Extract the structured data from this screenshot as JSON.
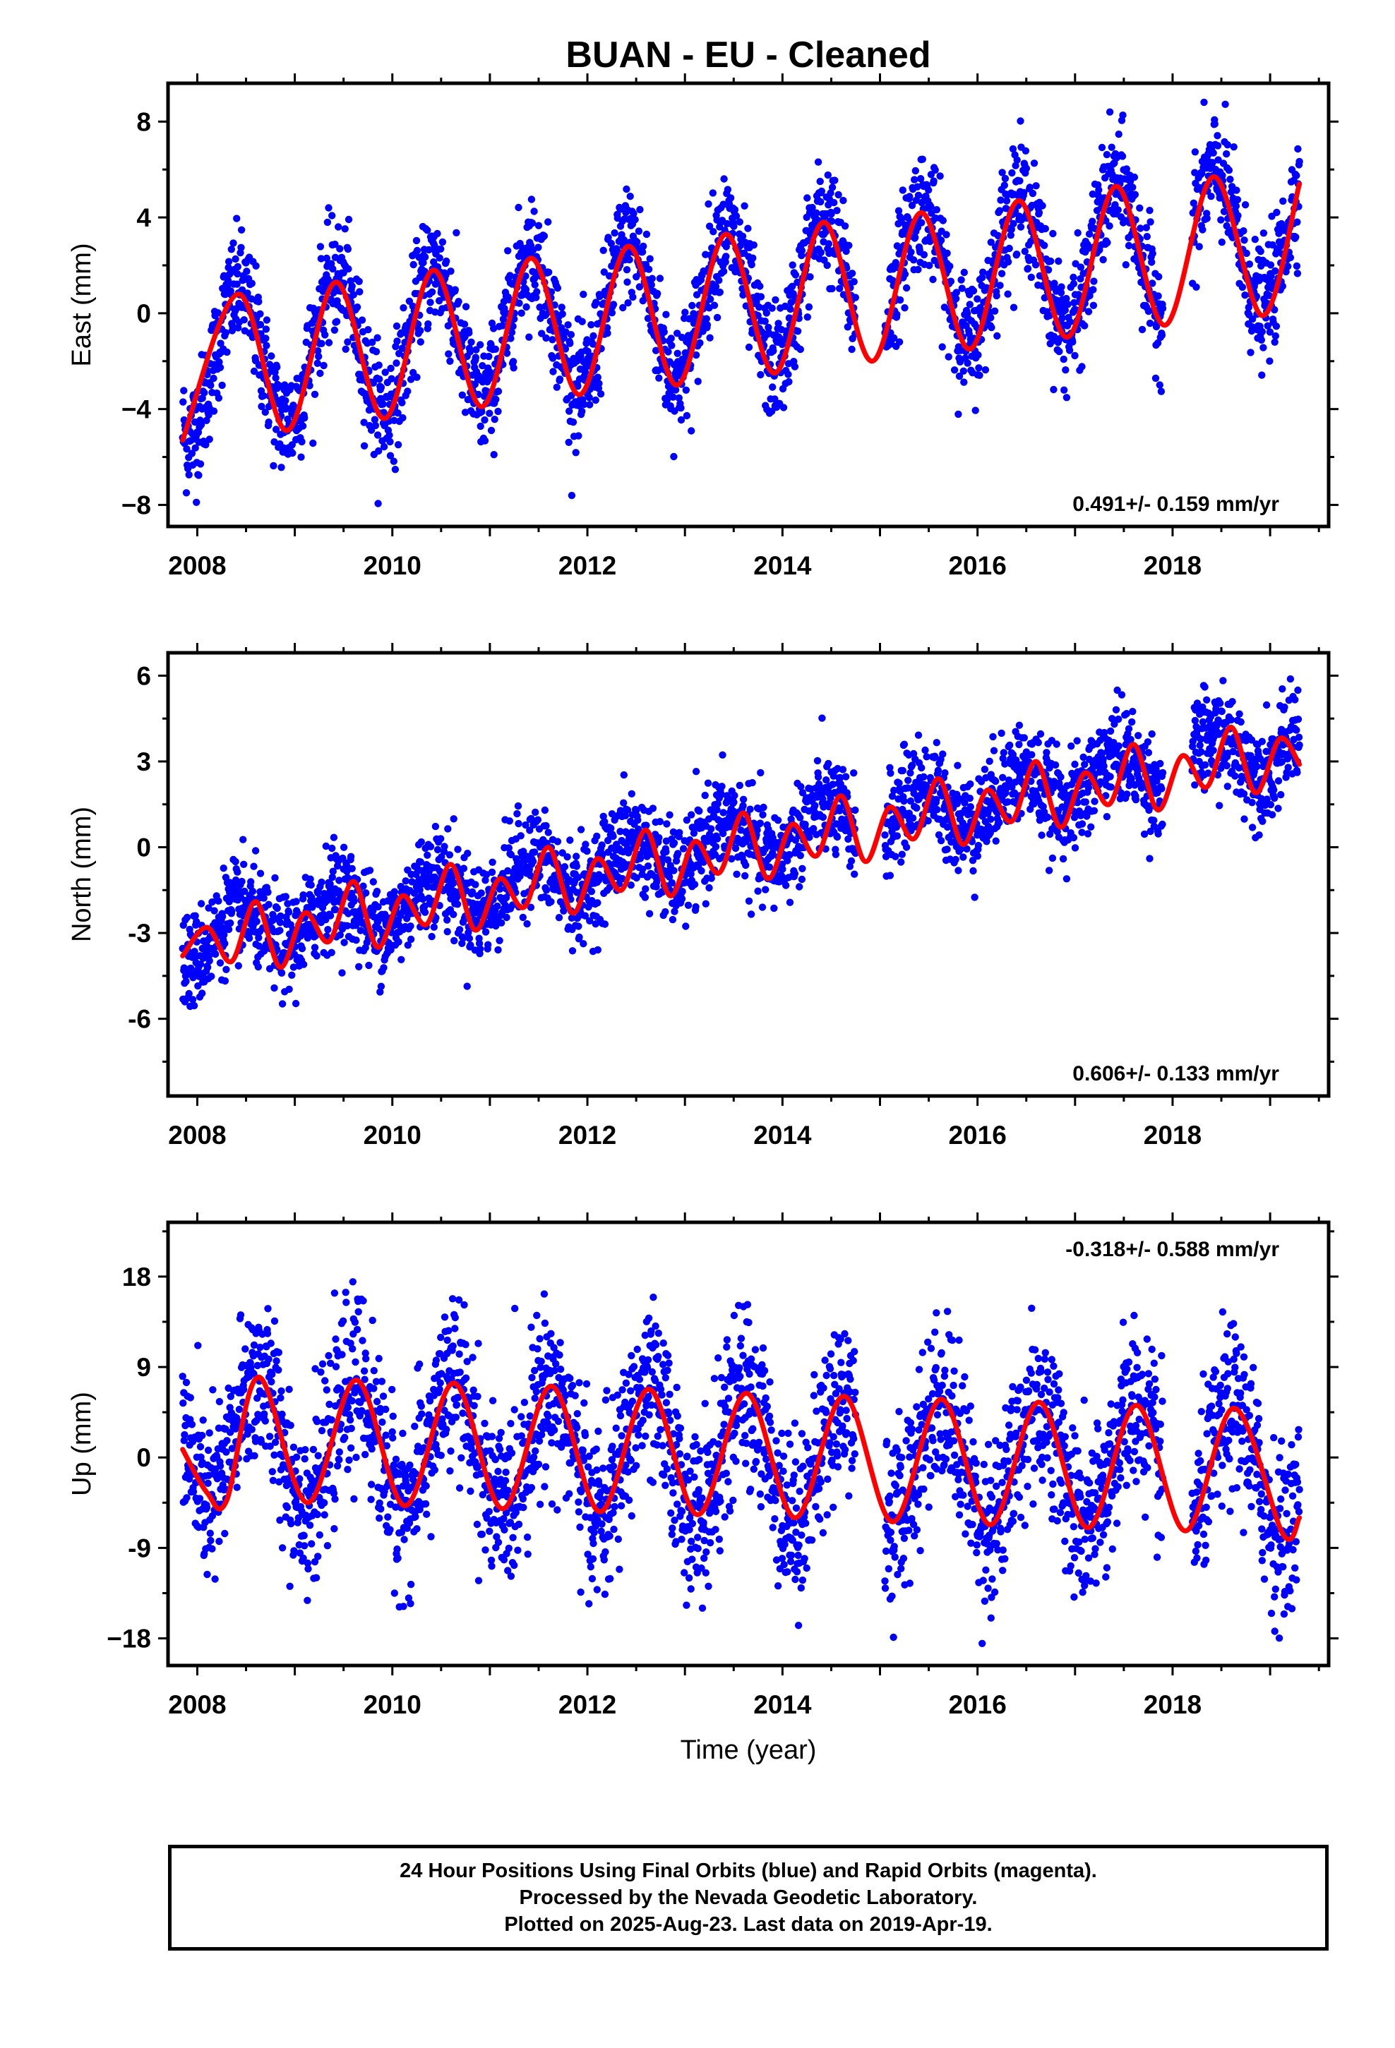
{
  "title": "BUAN  - EU - Cleaned",
  "xlabel": "Time (year)",
  "colors": {
    "points": "#0000ff",
    "fit": "#ff0000",
    "frame": "#000000"
  },
  "footer": {
    "line1": "24 Hour Positions Using Final Orbits (blue) and Rapid Orbits (magenta).",
    "line2": "Processed by the Nevada Geodetic Laboratory.",
    "line3": "Plotted on 2025-Aug-23. Last data on 2019-Apr-19."
  },
  "chart_data": [
    {
      "type": "scatter",
      "component": "East",
      "ylabel": "East (mm)",
      "xlim": [
        2007.7,
        2019.6
      ],
      "ylim": [
        -8.9,
        9.6
      ],
      "xticks": [
        "2008",
        "2010",
        "2012",
        "2014",
        "2016",
        "2018"
      ],
      "yticks": [
        "8",
        "4",
        "0",
        "−4",
        "−8"
      ],
      "ytick_values": [
        8,
        4,
        0,
        -4,
        -8
      ],
      "velocity_label": "0.491+/- 0.159 mm/yr",
      "velocity_position": "bottom-right",
      "series": [
        {
          "name": "24 Hour Positions Using Final Orbits (blue)",
          "kind": "points",
          "start": 2007.85,
          "end": 2019.3,
          "gaps": [
            [
              2014.75,
              2015.05
            ],
            [
              2017.9,
              2018.2
            ]
          ],
          "trend": {
            "at_start": -2.2,
            "rate_mm_per_yr": 0.491
          },
          "annual_amplitude": 2.9,
          "annual_peak_fraction": 0.42,
          "scatter": 1.2,
          "count": 3000
        },
        {
          "name": "fit",
          "kind": "line",
          "points": [
            [
              2007.85,
              -5.3
            ],
            [
              2008.42,
              0.8
            ],
            [
              2008.92,
              -4.9
            ],
            [
              2009.42,
              1.3
            ],
            [
              2009.92,
              -4.4
            ],
            [
              2010.42,
              1.8
            ],
            [
              2010.92,
              -3.9
            ],
            [
              2011.42,
              2.3
            ],
            [
              2011.92,
              -3.4
            ],
            [
              2012.42,
              2.8
            ],
            [
              2012.92,
              -3.0
            ],
            [
              2013.42,
              3.3
            ],
            [
              2013.92,
              -2.5
            ],
            [
              2014.42,
              3.8
            ],
            [
              2014.92,
              -2.0
            ],
            [
              2015.42,
              4.2
            ],
            [
              2015.92,
              -1.5
            ],
            [
              2016.42,
              4.7
            ],
            [
              2016.92,
              -1.0
            ],
            [
              2017.42,
              5.3
            ],
            [
              2017.92,
              -0.5
            ],
            [
              2018.42,
              5.7
            ],
            [
              2018.92,
              -0.1
            ],
            [
              2019.3,
              5.4
            ]
          ]
        }
      ]
    },
    {
      "type": "scatter",
      "component": "North",
      "ylabel": "North (mm)",
      "xlim": [
        2007.7,
        2019.6
      ],
      "ylim": [
        -8.7,
        6.8
      ],
      "xticks": [
        "2008",
        "2010",
        "2012",
        "2014",
        "2016",
        "2018"
      ],
      "yticks": [
        "6",
        "3",
        "0",
        "-3",
        "-6"
      ],
      "ytick_values": [
        6,
        3,
        0,
        -3,
        -6
      ],
      "velocity_label": "0.606+/- 0.133 mm/yr",
      "velocity_position": "bottom-right",
      "series": [
        {
          "name": "24 Hour Positions Using Final Orbits (blue)",
          "kind": "points",
          "start": 2007.85,
          "end": 2019.3,
          "gaps": [
            [
              2014.75,
              2015.05
            ],
            [
              2017.9,
              2018.2
            ]
          ],
          "trend": {
            "at_start": -3.3,
            "rate_mm_per_yr": 0.606
          },
          "annual_amplitude": 0.8,
          "annual_peak_fraction": 0.42,
          "scatter": 0.85,
          "count": 3000
        },
        {
          "name": "fit",
          "kind": "line",
          "points": [
            [
              2007.85,
              -3.8
            ],
            [
              2008.1,
              -2.8
            ],
            [
              2008.35,
              -4.0
            ],
            [
              2008.6,
              -1.9
            ],
            [
              2008.85,
              -4.2
            ],
            [
              2009.1,
              -2.3
            ],
            [
              2009.35,
              -3.3
            ],
            [
              2009.6,
              -1.2
            ],
            [
              2009.85,
              -3.5
            ],
            [
              2010.1,
              -1.7
            ],
            [
              2010.35,
              -2.7
            ],
            [
              2010.6,
              -0.6
            ],
            [
              2010.85,
              -2.9
            ],
            [
              2011.1,
              -1.1
            ],
            [
              2011.35,
              -2.1
            ],
            [
              2011.6,
              0.0
            ],
            [
              2011.85,
              -2.3
            ],
            [
              2012.1,
              -0.4
            ],
            [
              2012.35,
              -1.5
            ],
            [
              2012.6,
              0.6
            ],
            [
              2012.85,
              -1.7
            ],
            [
              2013.1,
              0.2
            ],
            [
              2013.35,
              -0.9
            ],
            [
              2013.6,
              1.2
            ],
            [
              2013.85,
              -1.1
            ],
            [
              2014.1,
              0.8
            ],
            [
              2014.35,
              -0.3
            ],
            [
              2014.6,
              1.8
            ],
            [
              2014.85,
              -0.5
            ],
            [
              2015.1,
              1.4
            ],
            [
              2015.35,
              0.3
            ],
            [
              2015.6,
              2.4
            ],
            [
              2015.85,
              0.1
            ],
            [
              2016.1,
              2.0
            ],
            [
              2016.35,
              0.9
            ],
            [
              2016.6,
              3.0
            ],
            [
              2016.85,
              0.7
            ],
            [
              2017.1,
              2.6
            ],
            [
              2017.35,
              1.5
            ],
            [
              2017.6,
              3.6
            ],
            [
              2017.85,
              1.3
            ],
            [
              2018.1,
              3.2
            ],
            [
              2018.35,
              2.1
            ],
            [
              2018.6,
              4.2
            ],
            [
              2018.85,
              1.9
            ],
            [
              2019.1,
              3.8
            ],
            [
              2019.3,
              2.9
            ]
          ]
        }
      ]
    },
    {
      "type": "scatter",
      "component": "Up",
      "ylabel": "Up (mm)",
      "xlim": [
        2007.7,
        2019.6
      ],
      "ylim": [
        -20.7,
        23.4
      ],
      "xticks": [
        "2008",
        "2010",
        "2012",
        "2014",
        "2016",
        "2018"
      ],
      "yticks": [
        "18",
        "9",
        "0",
        "-9",
        "−18"
      ],
      "ytick_values": [
        18,
        9,
        0,
        -9,
        -18
      ],
      "velocity_label": "-0.318+/- 0.588 mm/yr",
      "velocity_position": "top-right",
      "series": [
        {
          "name": "24 Hour Positions Using Final Orbits (blue)",
          "kind": "points",
          "start": 2007.85,
          "end": 2019.3,
          "gaps": [
            [
              2014.75,
              2015.05
            ],
            [
              2017.9,
              2018.2
            ]
          ],
          "trend": {
            "at_start": 2.0,
            "rate_mm_per_yr": -0.318
          },
          "annual_amplitude": 6.2,
          "annual_peak_fraction": 0.62,
          "scatter": 4.2,
          "count": 3000
        },
        {
          "name": "fit",
          "kind": "line",
          "points": [
            [
              2007.85,
              0.8
            ],
            [
              2008.1,
              -3.5
            ],
            [
              2008.3,
              -4.3
            ],
            [
              2008.63,
              8.0
            ],
            [
              2009.13,
              -4.5
            ],
            [
              2009.63,
              7.7
            ],
            [
              2010.13,
              -4.8
            ],
            [
              2010.63,
              7.4
            ],
            [
              2011.13,
              -5.1
            ],
            [
              2011.63,
              7.1
            ],
            [
              2012.13,
              -5.4
            ],
            [
              2012.63,
              6.8
            ],
            [
              2013.13,
              -5.7
            ],
            [
              2013.63,
              6.4
            ],
            [
              2014.13,
              -6.0
            ],
            [
              2014.63,
              6.1
            ],
            [
              2015.13,
              -6.4
            ],
            [
              2015.63,
              5.8
            ],
            [
              2016.13,
              -6.7
            ],
            [
              2016.63,
              5.5
            ],
            [
              2017.13,
              -7.0
            ],
            [
              2017.63,
              5.2
            ],
            [
              2018.13,
              -7.3
            ],
            [
              2018.63,
              4.9
            ],
            [
              2019.13,
              -7.6
            ],
            [
              2019.3,
              -6.0
            ]
          ]
        }
      ]
    }
  ]
}
